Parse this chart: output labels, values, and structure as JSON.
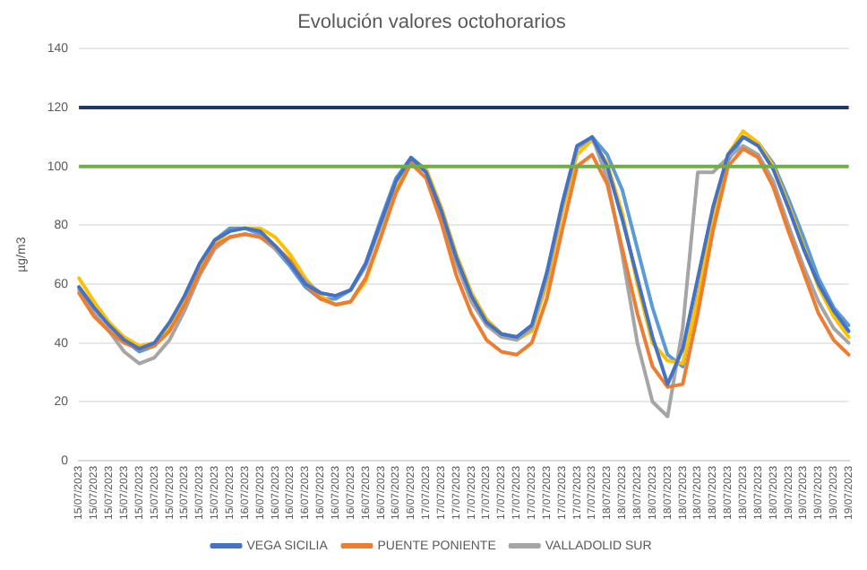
{
  "chart_data": {
    "type": "line",
    "title": "Evolución valores octohorarios",
    "ylabel": "µg/m3",
    "categories": [
      "15/07/2023",
      "15/07/2023",
      "15/07/2023",
      "15/07/2023",
      "15/07/2023",
      "15/07/2023",
      "15/07/2023",
      "15/07/2023",
      "15/07/2023",
      "15/07/2023",
      "15/07/2023",
      "16/07/2023",
      "16/07/2023",
      "16/07/2023",
      "16/07/2023",
      "16/07/2023",
      "16/07/2023",
      "16/07/2023",
      "16/07/2023",
      "16/07/2023",
      "16/07/2023",
      "16/07/2023",
      "16/07/2023",
      "17/07/2023",
      "17/07/2023",
      "17/07/2023",
      "17/07/2023",
      "17/07/2023",
      "17/07/2023",
      "17/07/2023",
      "17/07/2023",
      "17/07/2023",
      "17/07/2023",
      "17/07/2023",
      "17/07/2023",
      "18/07/2023",
      "18/07/2023",
      "18/07/2023",
      "18/07/2023",
      "18/07/2023",
      "18/07/2023",
      "18/07/2023",
      "18/07/2023",
      "18/07/2023",
      "18/07/2023",
      "18/07/2023",
      "18/07/2023",
      "19/07/2023",
      "19/07/2023",
      "19/07/2023",
      "19/07/2023",
      "19/07/2023"
    ],
    "series": [
      {
        "name": "VEGA SICILIA",
        "color": "#4472c4",
        "values": [
          59,
          52,
          46,
          41,
          38,
          40,
          47,
          56,
          67,
          75,
          78,
          79,
          78,
          73,
          67,
          60,
          57,
          56,
          58,
          67,
          81,
          95,
          103,
          98,
          85,
          69,
          56,
          47,
          43,
          42,
          46,
          64,
          87,
          107,
          110,
          100,
          82,
          62,
          42,
          26,
          38,
          62,
          86,
          104,
          110,
          107,
          99,
          86,
          72,
          60,
          51,
          44
        ]
      },
      {
        "name": "PUENTE PONIENTE",
        "color": "#ed7d31",
        "values": [
          57,
          49,
          44,
          40,
          38,
          39,
          44,
          53,
          64,
          73,
          76,
          77,
          76,
          73,
          68,
          60,
          55,
          53,
          54,
          62,
          76,
          91,
          101,
          96,
          81,
          63,
          50,
          41,
          37,
          36,
          40,
          55,
          78,
          100,
          104,
          94,
          72,
          50,
          32,
          25,
          26,
          50,
          78,
          100,
          106,
          103,
          93,
          78,
          64,
          50,
          41,
          36
        ]
      },
      {
        "name": "VALLADOLID SUR",
        "color": "#a5a5a5",
        "values": [
          58,
          50,
          44,
          37,
          33,
          35,
          41,
          51,
          63,
          72,
          76,
          77,
          76,
          72,
          67,
          61,
          57,
          56,
          58,
          66,
          80,
          95,
          102,
          98,
          84,
          67,
          54,
          46,
          42,
          41,
          45,
          62,
          86,
          106,
          110,
          96,
          70,
          40,
          20,
          15,
          45,
          98,
          98,
          103,
          107,
          104,
          95,
          80,
          66,
          54,
          45,
          40
        ]
      },
      {
        "color": "#ffc000",
        "values": [
          62,
          54,
          47,
          42,
          39,
          40,
          45,
          54,
          65,
          74,
          78,
          79,
          79,
          76,
          70,
          62,
          56,
          53,
          54,
          61,
          76,
          92,
          102,
          99,
          86,
          70,
          57,
          48,
          43,
          41,
          44,
          60,
          84,
          104,
          109,
          101,
          84,
          60,
          40,
          34,
          33,
          55,
          82,
          104,
          112,
          108,
          100,
          87,
          73,
          59,
          49,
          42
        ]
      },
      {
        "color": "#5b9bd5",
        "values": [
          59,
          52,
          46,
          41,
          37,
          39,
          46,
          56,
          67,
          75,
          79,
          79,
          77,
          72,
          66,
          59,
          55,
          55,
          58,
          67,
          82,
          96,
          103,
          99,
          86,
          70,
          57,
          48,
          43,
          42,
          45,
          62,
          86,
          106,
          110,
          104,
          92,
          72,
          52,
          36,
          32,
          56,
          82,
          102,
          110,
          108,
          101,
          89,
          76,
          62,
          52,
          46
        ]
      }
    ],
    "ylim": [
      0,
      140
    ],
    "yticks": [
      0,
      20,
      40,
      60,
      80,
      100,
      120,
      140
    ],
    "grid": "y",
    "legend": "bottom",
    "marker": "none",
    "line_style": "solid",
    "ref_lines": [
      {
        "axis": "y",
        "value": 120,
        "color": "#1f3864"
      },
      {
        "axis": "y",
        "value": 100,
        "color": "#70ad47"
      }
    ]
  }
}
